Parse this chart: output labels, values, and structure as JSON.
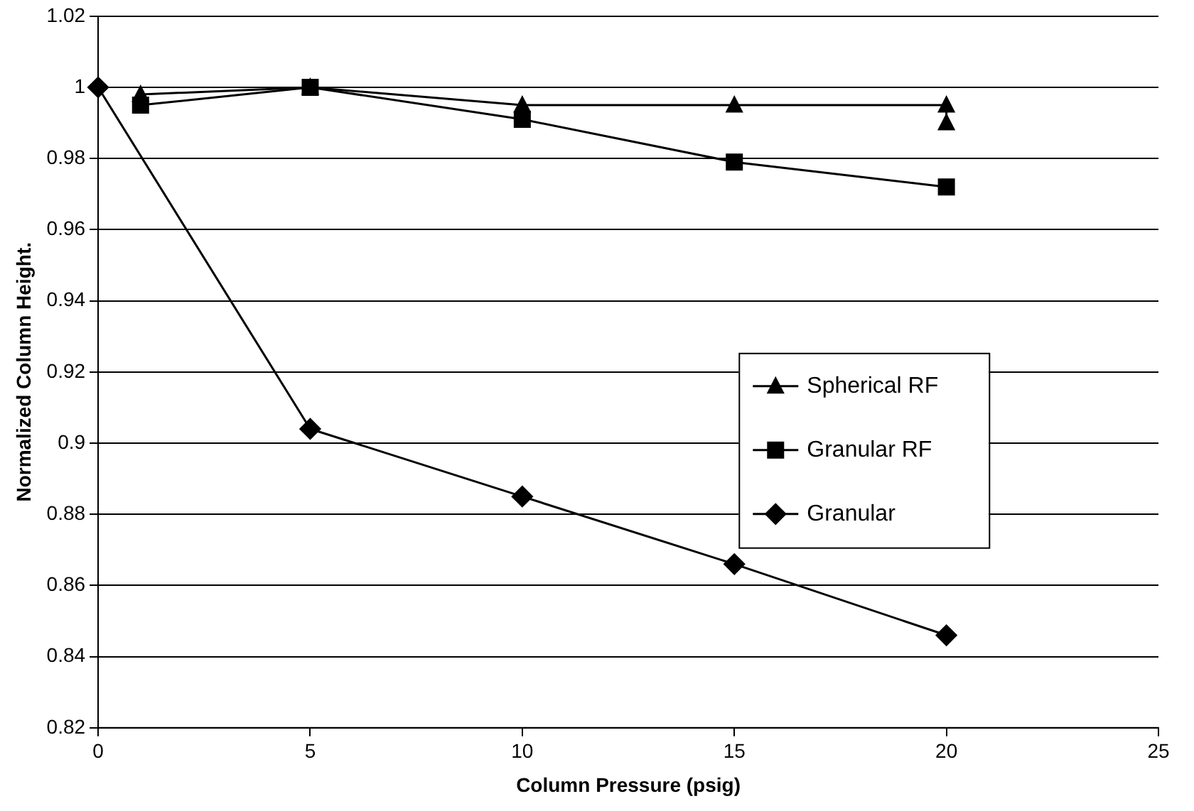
{
  "chart_data": {
    "type": "line",
    "xlabel": "Column Pressure (psig)",
    "ylabel": "Normalized Column Height.",
    "xlim": [
      0,
      25
    ],
    "xticks": [
      0,
      5,
      10,
      15,
      20,
      25
    ],
    "ylim": [
      0.82,
      1.02
    ],
    "yticks": [
      0.82,
      0.84,
      0.86,
      0.88,
      0.9,
      0.92,
      0.94,
      0.96,
      0.98,
      1,
      1.02
    ],
    "grid": "y",
    "legend": "right",
    "series": [
      {
        "name": "Spherical RF",
        "color": "#000000",
        "marker": "triangle",
        "x": [
          1,
          5,
          10,
          15,
          20,
          20
        ],
        "values": [
          0.998,
          1,
          0.995,
          0.995,
          0.995,
          0.99
        ]
      },
      {
        "name": "Granular RF",
        "color": "#000000",
        "marker": "square",
        "x": [
          1,
          5,
          10,
          15,
          20
        ],
        "values": [
          0.995,
          1,
          0.991,
          0.979,
          0.972
        ]
      },
      {
        "name": "Granular",
        "color": "#000000",
        "marker": "diamond",
        "x": [
          0,
          5,
          10,
          15,
          20
        ],
        "values": [
          1,
          0.904,
          0.885,
          0.866,
          0.846
        ]
      }
    ]
  }
}
